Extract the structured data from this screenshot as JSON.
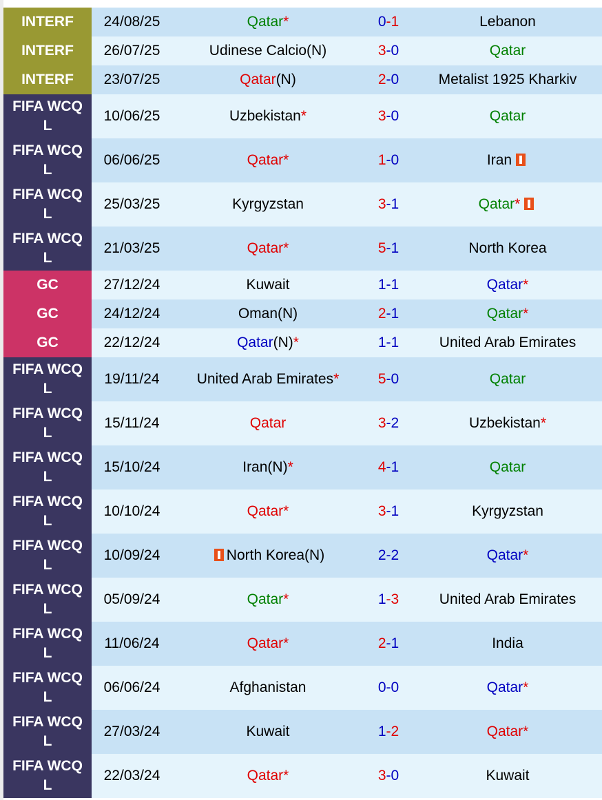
{
  "colors": {
    "INTERF": "#999933",
    "FIFA WCQ L": "#3a3660",
    "GC": "#cc3366",
    "green": "#008000",
    "red": "#e00000",
    "blue": "#0000c0",
    "black": "#000000",
    "card": "#e8501a"
  },
  "matches": [
    {
      "comp": "INTERF",
      "date": "24/08/25",
      "home": {
        "name": "Qatar",
        "color": "green",
        "star": "*"
      },
      "score": [
        "0",
        "-1"
      ],
      "score_colors": [
        "blue",
        "red"
      ],
      "away": {
        "name": "Lebanon",
        "color": "black"
      }
    },
    {
      "comp": "INTERF",
      "date": "26/07/25",
      "home": {
        "name": "Udinese Calcio",
        "color": "black",
        "suffix": "(N)"
      },
      "score": [
        "3",
        "-0"
      ],
      "score_colors": [
        "red",
        "blue"
      ],
      "away": {
        "name": "Qatar",
        "color": "green"
      }
    },
    {
      "comp": "INTERF",
      "date": "23/07/25",
      "home": {
        "name": "Qatar",
        "color": "red",
        "suffix": "(N)"
      },
      "score": [
        "2",
        "-0"
      ],
      "score_colors": [
        "red",
        "blue"
      ],
      "away": {
        "name": "Metalist 1925 Kharkiv",
        "color": "black"
      }
    },
    {
      "comp": "FIFA WCQ L",
      "date": "10/06/25",
      "home": {
        "name": "Uzbekistan",
        "color": "black",
        "star": "*"
      },
      "score": [
        "3",
        "-0"
      ],
      "score_colors": [
        "red",
        "blue"
      ],
      "away": {
        "name": "Qatar",
        "color": "green"
      }
    },
    {
      "comp": "FIFA WCQ L",
      "date": "06/06/25",
      "home": {
        "name": "Qatar",
        "color": "red",
        "star": "*"
      },
      "score": [
        "1",
        "-0"
      ],
      "score_colors": [
        "red",
        "blue"
      ],
      "away": {
        "name": "Iran",
        "color": "black",
        "card_after": true
      }
    },
    {
      "comp": "FIFA WCQ L",
      "date": "25/03/25",
      "home": {
        "name": "Kyrgyzstan",
        "color": "black"
      },
      "score": [
        "3",
        "-1"
      ],
      "score_colors": [
        "red",
        "blue"
      ],
      "away": {
        "name": "Qatar",
        "color": "green",
        "star": "*",
        "card_after": true
      }
    },
    {
      "comp": "FIFA WCQ L",
      "date": "21/03/25",
      "home": {
        "name": "Qatar",
        "color": "red",
        "star": "*"
      },
      "score": [
        "5",
        "-1"
      ],
      "score_colors": [
        "red",
        "blue"
      ],
      "away": {
        "name": "North Korea",
        "color": "black"
      }
    },
    {
      "comp": "GC",
      "date": "27/12/24",
      "home": {
        "name": "Kuwait",
        "color": "black"
      },
      "score": [
        "1",
        "-1"
      ],
      "score_colors": [
        "blue",
        "blue"
      ],
      "away": {
        "name": "Qatar",
        "color": "blue",
        "star": "*"
      }
    },
    {
      "comp": "GC",
      "date": "24/12/24",
      "home": {
        "name": "Oman",
        "color": "black",
        "suffix": "(N)"
      },
      "score": [
        "2",
        "-1"
      ],
      "score_colors": [
        "red",
        "blue"
      ],
      "away": {
        "name": "Qatar",
        "color": "green",
        "star": "*"
      }
    },
    {
      "comp": "GC",
      "date": "22/12/24",
      "home": {
        "name": "Qatar",
        "color": "blue",
        "suffix": "(N)",
        "star": "*"
      },
      "score": [
        "1",
        "-1"
      ],
      "score_colors": [
        "blue",
        "blue"
      ],
      "away": {
        "name": "United Arab Emirates",
        "color": "black"
      }
    },
    {
      "comp": "FIFA WCQ L",
      "date": "19/11/24",
      "home": {
        "name": "United Arab Emirates",
        "color": "black",
        "star": "*"
      },
      "score": [
        "5",
        "-0"
      ],
      "score_colors": [
        "red",
        "blue"
      ],
      "away": {
        "name": "Qatar",
        "color": "green"
      }
    },
    {
      "comp": "FIFA WCQ L",
      "date": "15/11/24",
      "home": {
        "name": "Qatar",
        "color": "red"
      },
      "score": [
        "3",
        "-2"
      ],
      "score_colors": [
        "red",
        "blue"
      ],
      "away": {
        "name": "Uzbekistan",
        "color": "black",
        "star": "*"
      }
    },
    {
      "comp": "FIFA WCQ L",
      "date": "15/10/24",
      "home": {
        "name": "Iran",
        "color": "black",
        "suffix": "(N)",
        "star": "*"
      },
      "score": [
        "4",
        "-1"
      ],
      "score_colors": [
        "red",
        "blue"
      ],
      "away": {
        "name": "Qatar",
        "color": "green"
      }
    },
    {
      "comp": "FIFA WCQ L",
      "date": "10/10/24",
      "home": {
        "name": "Qatar",
        "color": "red",
        "star": "*"
      },
      "score": [
        "3",
        "-1"
      ],
      "score_colors": [
        "red",
        "blue"
      ],
      "away": {
        "name": "Kyrgyzstan",
        "color": "black"
      }
    },
    {
      "comp": "FIFA WCQ L",
      "date": "10/09/24",
      "home": {
        "name": "North Korea",
        "color": "black",
        "suffix": "(N)",
        "card_before": true
      },
      "score": [
        "2",
        "-2"
      ],
      "score_colors": [
        "blue",
        "blue"
      ],
      "away": {
        "name": "Qatar",
        "color": "blue",
        "star": "*"
      }
    },
    {
      "comp": "FIFA WCQ L",
      "date": "05/09/24",
      "home": {
        "name": "Qatar",
        "color": "green",
        "star": "*"
      },
      "score": [
        "1",
        "-3"
      ],
      "score_colors": [
        "blue",
        "red"
      ],
      "away": {
        "name": "United Arab Emirates",
        "color": "black"
      }
    },
    {
      "comp": "FIFA WCQ L",
      "date": "11/06/24",
      "home": {
        "name": "Qatar",
        "color": "red",
        "star": "*"
      },
      "score": [
        "2",
        "-1"
      ],
      "score_colors": [
        "red",
        "blue"
      ],
      "away": {
        "name": "India",
        "color": "black"
      }
    },
    {
      "comp": "FIFA WCQ L",
      "date": "06/06/24",
      "home": {
        "name": "Afghanistan",
        "color": "black"
      },
      "score": [
        "0",
        "-0"
      ],
      "score_colors": [
        "blue",
        "blue"
      ],
      "away": {
        "name": "Qatar",
        "color": "blue",
        "star": "*"
      }
    },
    {
      "comp": "FIFA WCQ L",
      "date": "27/03/24",
      "home": {
        "name": "Kuwait",
        "color": "black"
      },
      "score": [
        "1",
        "-2"
      ],
      "score_colors": [
        "blue",
        "red"
      ],
      "away": {
        "name": "Qatar",
        "color": "red",
        "star": "*"
      }
    },
    {
      "comp": "FIFA WCQ L",
      "date": "22/03/24",
      "home": {
        "name": "Qatar",
        "color": "red",
        "star": "*"
      },
      "score": [
        "3",
        "-0"
      ],
      "score_colors": [
        "red",
        "blue"
      ],
      "away": {
        "name": "Kuwait",
        "color": "black"
      }
    }
  ]
}
